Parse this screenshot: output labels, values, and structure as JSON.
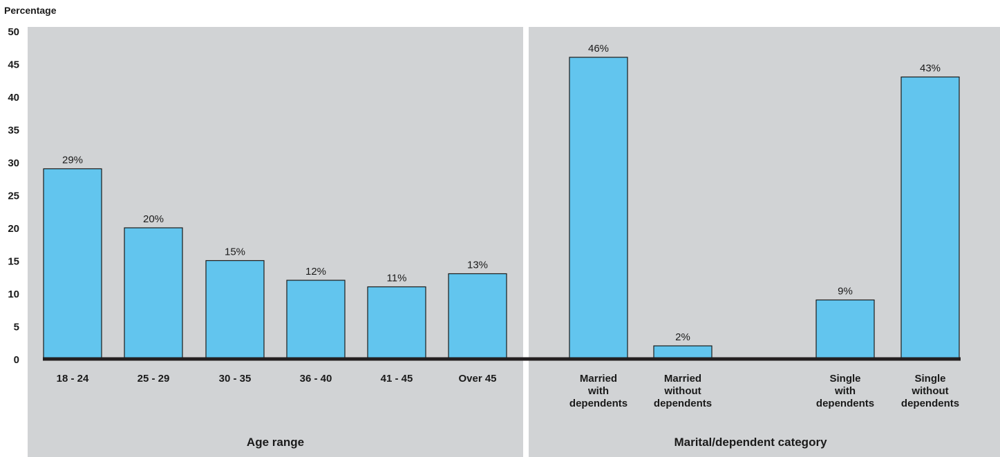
{
  "colors": {
    "panel_bg": "#d1d3d5",
    "bar_fill": "#62c5ee",
    "bar_stroke": "#1a1a1a",
    "baseline": "#231f20"
  },
  "chart_data": {
    "type": "bar",
    "ylabel": "Percentage",
    "ylim": [
      0,
      50
    ],
    "yticks": [
      0,
      5,
      10,
      15,
      20,
      25,
      30,
      35,
      40,
      45,
      50
    ],
    "grid": false,
    "panels": [
      {
        "label": "Age range",
        "categories": [
          [
            "18 - 24"
          ],
          [
            "25 - 29"
          ],
          [
            "30 - 35"
          ],
          [
            "36 - 40"
          ],
          [
            "41 - 45"
          ],
          [
            "Over 45"
          ]
        ],
        "values": [
          29,
          20,
          15,
          12,
          11,
          13
        ],
        "data_labels": [
          "29%",
          "20%",
          "15%",
          "12%",
          "11%",
          "13%"
        ]
      },
      {
        "label": "Marital/dependent category",
        "categories": [
          [
            "Married",
            "with",
            "dependents"
          ],
          [
            "Married",
            "without",
            "dependents"
          ],
          [
            "Single",
            "with",
            "dependents"
          ],
          [
            "Single",
            "without",
            "dependents"
          ]
        ],
        "values": [
          46,
          2,
          9,
          43
        ],
        "data_labels": [
          "46%",
          "2%",
          "9%",
          "43%"
        ]
      }
    ]
  }
}
